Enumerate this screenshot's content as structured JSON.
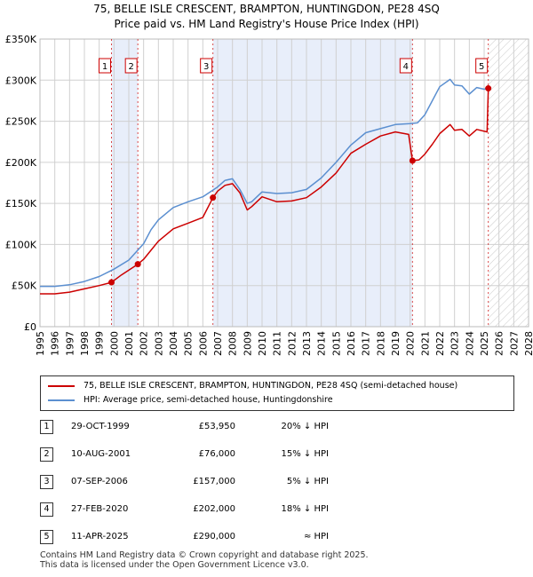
{
  "title_line1": "75, BELLE ISLE CRESCENT, BRAMPTON, HUNTINGDON, PE28 4SQ",
  "title_line2": "Price paid vs. HM Land Registry's House Price Index (HPI)",
  "colors": {
    "property": "#cc0000",
    "hpi": "#5b8fd0",
    "band": "#e8eefa",
    "grid": "#d0d0d0"
  },
  "chart_data": {
    "type": "line",
    "ylim": [
      0,
      350000
    ],
    "xlim": [
      1995,
      2028
    ],
    "y_ticks": [
      {
        "value": 0,
        "label": "£0"
      },
      {
        "value": 50000,
        "label": "£50K"
      },
      {
        "value": 100000,
        "label": "£100K"
      },
      {
        "value": 150000,
        "label": "£150K"
      },
      {
        "value": 200000,
        "label": "£200K"
      },
      {
        "value": 250000,
        "label": "£250K"
      },
      {
        "value": 300000,
        "label": "£300K"
      },
      {
        "value": 350000,
        "label": "£350K"
      }
    ],
    "x_ticks": [
      "1995",
      "1996",
      "1997",
      "1998",
      "1999",
      "2000",
      "2001",
      "2002",
      "2003",
      "2004",
      "2005",
      "2006",
      "2007",
      "2008",
      "2009",
      "2010",
      "2011",
      "2012",
      "2013",
      "2014",
      "2015",
      "2016",
      "2017",
      "2018",
      "2019",
      "2020",
      "2021",
      "2022",
      "2023",
      "2024",
      "2025",
      "2026",
      "2027",
      "2028"
    ],
    "shaded_bands": [
      [
        1999.83,
        2001.61
      ],
      [
        2006.68,
        2020.16
      ]
    ],
    "future_hatch_from": 2025.28,
    "series": [
      {
        "name": "75, BELLE ISLE CRESCENT, BRAMPTON, HUNTINGDON, PE28 4SQ (semi-detached house)",
        "x": [
          1995,
          1996,
          1997,
          1998,
          1999,
          1999.83,
          2000.5,
          2001.61,
          2002,
          2002.5,
          2003,
          2004,
          2005,
          2006,
          2006.68,
          2007,
          2007.5,
          2008,
          2008.5,
          2009,
          2009.3,
          2010,
          2011,
          2012,
          2013,
          2014,
          2015,
          2016,
          2017,
          2018,
          2019,
          2019.9,
          2020.16,
          2020.6,
          2021,
          2021.5,
          2022,
          2022.7,
          2023,
          2023.5,
          2024,
          2024.5,
          2025.2,
          2025.28
        ],
        "values": [
          40000,
          40000,
          42000,
          46000,
          50000,
          53950,
          63000,
          76000,
          82000,
          93000,
          104000,
          119000,
          126000,
          133000,
          157000,
          165000,
          172000,
          174000,
          163000,
          142000,
          146000,
          158000,
          152000,
          153000,
          157000,
          170000,
          187000,
          211000,
          222000,
          232000,
          237000,
          234000,
          202000,
          203000,
          210000,
          222000,
          235000,
          246000,
          239000,
          240000,
          232000,
          240000,
          237000,
          290000
        ]
      },
      {
        "name": "HPI: Average price, semi-detached house, Huntingdonshire",
        "x": [
          1995,
          1996,
          1997,
          1998,
          1999,
          2000,
          2001,
          2002,
          2002.5,
          2003,
          2004,
          2005,
          2006,
          2007,
          2007.5,
          2008,
          2008.5,
          2009,
          2009.3,
          2010,
          2011,
          2012,
          2013,
          2014,
          2015,
          2016,
          2017,
          2018,
          2019,
          2020,
          2020.5,
          2021,
          2021.5,
          2022,
          2022.7,
          2023,
          2023.5,
          2024,
          2024.5,
          2025,
          2025.28
        ],
        "values": [
          49000,
          49000,
          51000,
          55000,
          61000,
          70000,
          81000,
          101000,
          118000,
          130000,
          145000,
          152000,
          158000,
          170000,
          178000,
          180000,
          167000,
          150000,
          152000,
          164000,
          162000,
          163000,
          167000,
          181000,
          200000,
          221000,
          236000,
          241000,
          246000,
          247000,
          248000,
          258000,
          275000,
          292000,
          301000,
          294000,
          293000,
          283000,
          291000,
          289000,
          290000
        ]
      }
    ],
    "markers": [
      {
        "label": "1",
        "x": 1999.83,
        "value": 53950
      },
      {
        "label": "2",
        "x": 2001.61,
        "value": 76000
      },
      {
        "label": "3",
        "x": 2006.68,
        "value": 157000
      },
      {
        "label": "4",
        "x": 2020.16,
        "value": 202000
      },
      {
        "label": "5",
        "x": 2025.28,
        "value": 290000
      }
    ]
  },
  "legend": {
    "property": "75, BELLE ISLE CRESCENT, BRAMPTON, HUNTINGDON, PE28 4SQ (semi-detached house)",
    "hpi": "HPI: Average price, semi-detached house, Huntingdonshire"
  },
  "transactions": [
    {
      "num": "1",
      "date": "29-OCT-1999",
      "price": "£53,950",
      "hpi": "20% ↓ HPI"
    },
    {
      "num": "2",
      "date": "10-AUG-2001",
      "price": "£76,000",
      "hpi": "15% ↓ HPI"
    },
    {
      "num": "3",
      "date": "07-SEP-2006",
      "price": "£157,000",
      "hpi": "5% ↓ HPI"
    },
    {
      "num": "4",
      "date": "27-FEB-2020",
      "price": "£202,000",
      "hpi": "18% ↓ HPI"
    },
    {
      "num": "5",
      "date": "11-APR-2025",
      "price": "£290,000",
      "hpi": "≈ HPI"
    }
  ],
  "footer": {
    "line1": "Contains HM Land Registry data © Crown copyright and database right 2025.",
    "line2": "This data is licensed under the Open Government Licence v3.0."
  }
}
